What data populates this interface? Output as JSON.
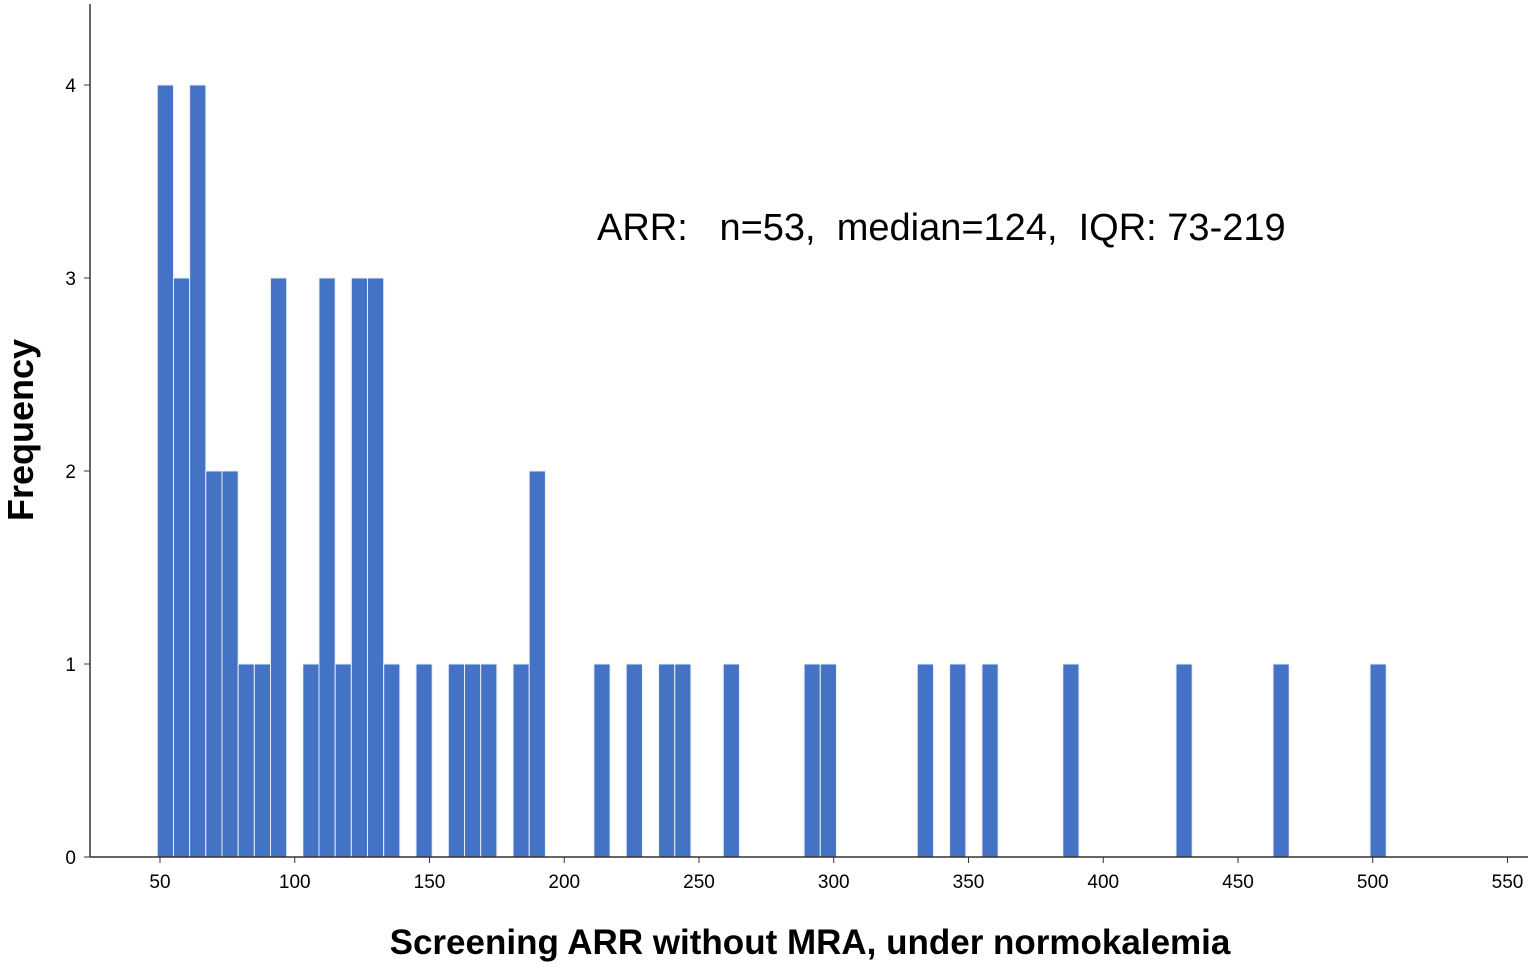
{
  "chart_data": {
    "type": "bar",
    "subtype": "histogram",
    "title": "",
    "xlabel": "Screening ARR without MRA, under normokalemia",
    "ylabel": "Frequency",
    "annotation": "ARR:   n=53,  median=124,  IQR: 73-219",
    "xlim": [
      25,
      550
    ],
    "ylim": [
      0,
      4.4
    ],
    "x_ticks": [
      50,
      100,
      150,
      200,
      250,
      300,
      350,
      400,
      450,
      500,
      550
    ],
    "y_ticks": [
      0,
      1,
      2,
      3,
      4
    ],
    "bin_width": 6,
    "grid": false,
    "legend": "none",
    "bar_color": "#4472c4",
    "bars": [
      {
        "x": 52,
        "count": 4
      },
      {
        "x": 58,
        "count": 3
      },
      {
        "x": 64,
        "count": 4
      },
      {
        "x": 70,
        "count": 2
      },
      {
        "x": 76,
        "count": 2
      },
      {
        "x": 82,
        "count": 1
      },
      {
        "x": 88,
        "count": 1
      },
      {
        "x": 94,
        "count": 3
      },
      {
        "x": 106,
        "count": 1
      },
      {
        "x": 112,
        "count": 3
      },
      {
        "x": 118,
        "count": 1
      },
      {
        "x": 124,
        "count": 3
      },
      {
        "x": 130,
        "count": 3
      },
      {
        "x": 136,
        "count": 1
      },
      {
        "x": 148,
        "count": 1
      },
      {
        "x": 160,
        "count": 1
      },
      {
        "x": 166,
        "count": 1
      },
      {
        "x": 172,
        "count": 1
      },
      {
        "x": 184,
        "count": 1
      },
      {
        "x": 190,
        "count": 2
      },
      {
        "x": 214,
        "count": 1
      },
      {
        "x": 226,
        "count": 1
      },
      {
        "x": 238,
        "count": 1
      },
      {
        "x": 244,
        "count": 1
      },
      {
        "x": 262,
        "count": 1
      },
      {
        "x": 292,
        "count": 1
      },
      {
        "x": 298,
        "count": 1
      },
      {
        "x": 334,
        "count": 1
      },
      {
        "x": 346,
        "count": 1
      },
      {
        "x": 358,
        "count": 1
      },
      {
        "x": 388,
        "count": 1
      },
      {
        "x": 430,
        "count": 1
      },
      {
        "x": 466,
        "count": 1
      },
      {
        "x": 502,
        "count": 1
      }
    ]
  }
}
